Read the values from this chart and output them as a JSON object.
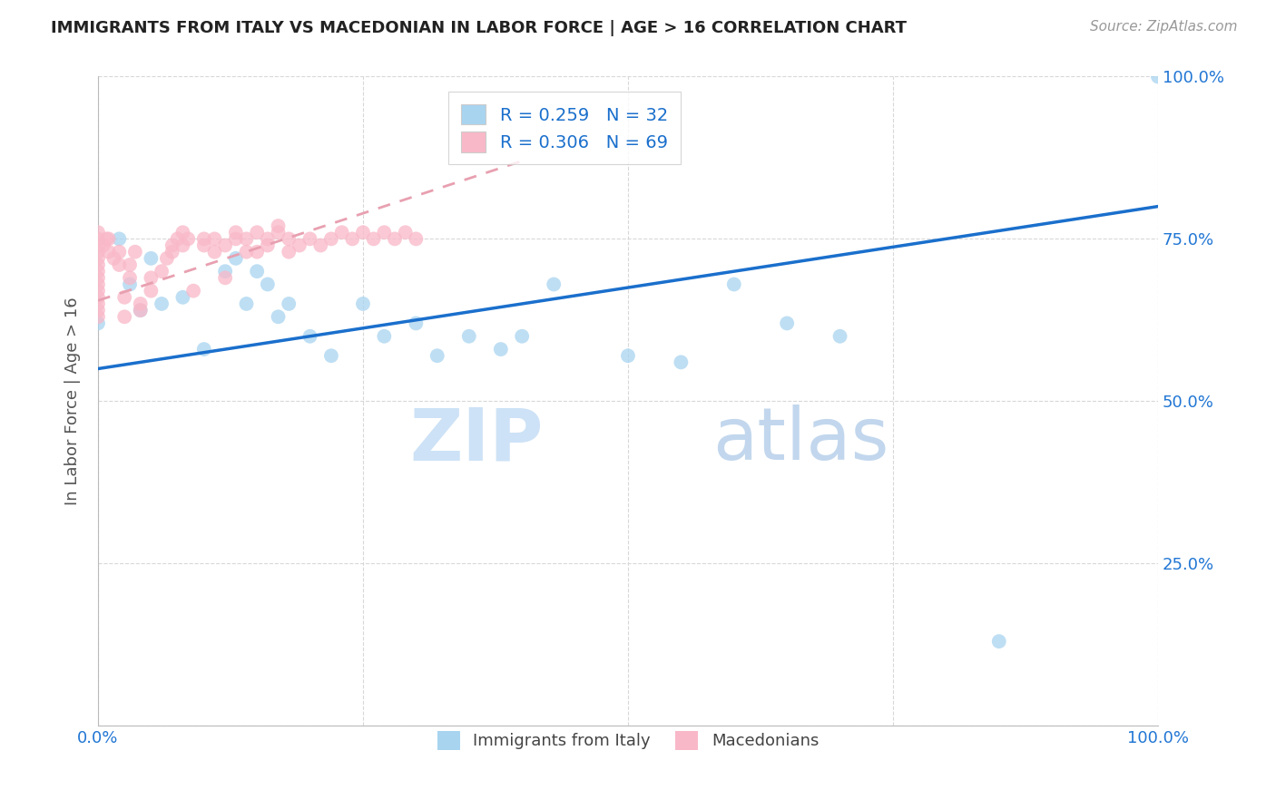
{
  "title": "IMMIGRANTS FROM ITALY VS MACEDONIAN IN LABOR FORCE | AGE > 16 CORRELATION CHART",
  "source": "Source: ZipAtlas.com",
  "ylabel": "In Labor Force | Age > 16",
  "watermark": "ZIPatlas",
  "xlim": [
    0.0,
    1.0
  ],
  "ylim": [
    0.0,
    1.0
  ],
  "xticks": [
    0.0,
    0.25,
    0.5,
    0.75,
    1.0
  ],
  "yticks": [
    0.0,
    0.25,
    0.5,
    0.75,
    1.0
  ],
  "xticklabels": [
    "0.0%",
    "",
    "",
    "",
    "100.0%"
  ],
  "yticklabels_right": [
    "",
    "25.0%",
    "50.0%",
    "75.0%",
    "100.0%"
  ],
  "legend_italy_color": "#a8d4f0",
  "legend_mac_color": "#f9b8c8",
  "italy_dot_color": "#a8d4f0",
  "mac_dot_color": "#f9b8c8",
  "italy_line_color": "#1a6fcc",
  "mac_line_color": "#e8a0b0",
  "R_italy": 0.259,
  "N_italy": 32,
  "R_mac": 0.306,
  "N_mac": 69,
  "italy_x": [
    0.0,
    0.02,
    0.03,
    0.04,
    0.05,
    0.06,
    0.08,
    0.1,
    0.12,
    0.13,
    0.14,
    0.15,
    0.16,
    0.17,
    0.18,
    0.2,
    0.22,
    0.25,
    0.27,
    0.3,
    0.32,
    0.35,
    0.38,
    0.4,
    0.43,
    0.5,
    0.55,
    0.6,
    0.65,
    0.7,
    0.85,
    1.0
  ],
  "italy_y": [
    0.62,
    0.75,
    0.68,
    0.64,
    0.72,
    0.65,
    0.66,
    0.58,
    0.7,
    0.72,
    0.65,
    0.7,
    0.68,
    0.63,
    0.65,
    0.6,
    0.57,
    0.65,
    0.6,
    0.62,
    0.57,
    0.6,
    0.58,
    0.6,
    0.68,
    0.57,
    0.56,
    0.68,
    0.62,
    0.6,
    0.13,
    1.0
  ],
  "mac_x": [
    0.0,
    0.0,
    0.0,
    0.0,
    0.0,
    0.0,
    0.0,
    0.0,
    0.0,
    0.0,
    0.0,
    0.0,
    0.0,
    0.0,
    0.005,
    0.008,
    0.01,
    0.01,
    0.015,
    0.02,
    0.02,
    0.025,
    0.025,
    0.03,
    0.03,
    0.035,
    0.04,
    0.04,
    0.05,
    0.05,
    0.06,
    0.065,
    0.07,
    0.07,
    0.075,
    0.08,
    0.08,
    0.085,
    0.09,
    0.1,
    0.1,
    0.11,
    0.11,
    0.12,
    0.12,
    0.13,
    0.13,
    0.14,
    0.14,
    0.15,
    0.15,
    0.16,
    0.16,
    0.17,
    0.17,
    0.18,
    0.18,
    0.19,
    0.2,
    0.21,
    0.22,
    0.23,
    0.24,
    0.25,
    0.26,
    0.27,
    0.28,
    0.29,
    0.3
  ],
  "mac_y": [
    0.63,
    0.64,
    0.65,
    0.66,
    0.67,
    0.68,
    0.69,
    0.7,
    0.71,
    0.72,
    0.73,
    0.74,
    0.75,
    0.76,
    0.74,
    0.75,
    0.73,
    0.75,
    0.72,
    0.71,
    0.73,
    0.63,
    0.66,
    0.69,
    0.71,
    0.73,
    0.64,
    0.65,
    0.67,
    0.69,
    0.7,
    0.72,
    0.73,
    0.74,
    0.75,
    0.74,
    0.76,
    0.75,
    0.67,
    0.74,
    0.75,
    0.73,
    0.75,
    0.69,
    0.74,
    0.75,
    0.76,
    0.73,
    0.75,
    0.76,
    0.73,
    0.74,
    0.75,
    0.76,
    0.77,
    0.73,
    0.75,
    0.74,
    0.75,
    0.74,
    0.75,
    0.76,
    0.75,
    0.76,
    0.75,
    0.76,
    0.75,
    0.76,
    0.75
  ],
  "background_color": "#ffffff",
  "grid_color": "#d8d8d8",
  "title_color": "#222222",
  "tick_color": "#2176d4",
  "ylabel_color": "#555555"
}
